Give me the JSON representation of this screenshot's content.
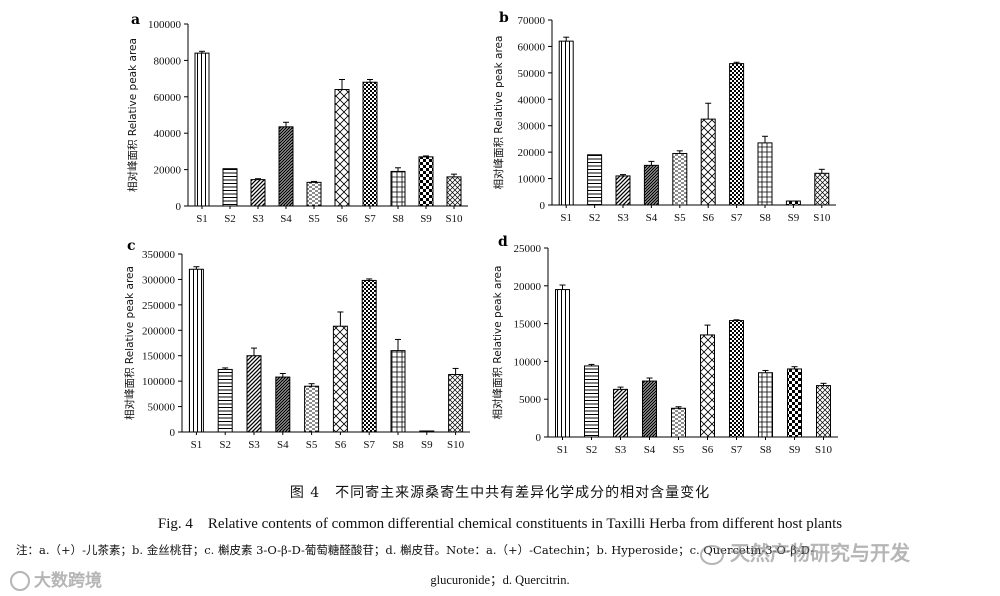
{
  "chart_data": [
    {
      "type": "bar",
      "panel": "a",
      "ylabel": "相对峰面积 Relative peak area",
      "ylim": [
        0,
        100000
      ],
      "yticks": [
        0,
        20000,
        40000,
        60000,
        80000,
        100000
      ],
      "categories": [
        "S1",
        "S2",
        "S3",
        "S4",
        "S5",
        "S6",
        "S7",
        "S8",
        "S9",
        "S10"
      ],
      "values": [
        84000,
        20500,
        14500,
        43500,
        13000,
        64000,
        68000,
        19000,
        27000,
        16000
      ],
      "errors": [
        1000,
        0,
        500,
        2500,
        500,
        5500,
        1500,
        2000,
        500,
        1500
      ]
    },
    {
      "type": "bar",
      "panel": "b",
      "ylabel": "相对峰面积 Relative peak area",
      "ylim": [
        0,
        70000
      ],
      "yticks": [
        0,
        10000,
        20000,
        30000,
        40000,
        50000,
        60000,
        70000
      ],
      "categories": [
        "S1",
        "S2",
        "S3",
        "S4",
        "S5",
        "S6",
        "S7",
        "S8",
        "S9",
        "S10"
      ],
      "values": [
        62000,
        19000,
        11000,
        15000,
        19500,
        32500,
        53500,
        23500,
        1500,
        12000
      ],
      "errors": [
        1500,
        0,
        500,
        1500,
        1000,
        6000,
        500,
        2500,
        0,
        1500
      ]
    },
    {
      "type": "bar",
      "panel": "c",
      "ylabel": "相对峰面积 Relative peak area",
      "ylim": [
        0,
        350000
      ],
      "yticks": [
        0,
        50000,
        100000,
        150000,
        200000,
        250000,
        300000,
        350000
      ],
      "categories": [
        "S1",
        "S2",
        "S3",
        "S4",
        "S5",
        "S6",
        "S7",
        "S8",
        "S9",
        "S10"
      ],
      "values": [
        320000,
        123000,
        150000,
        108000,
        90000,
        208000,
        298000,
        160000,
        2000,
        113000
      ],
      "errors": [
        5000,
        3000,
        15000,
        7000,
        5000,
        28000,
        3000,
        22000,
        0,
        12000
      ]
    },
    {
      "type": "bar",
      "panel": "d",
      "ylabel": "相对峰面积 Relative peak area",
      "ylim": [
        0,
        25000
      ],
      "yticks": [
        0,
        5000,
        10000,
        15000,
        20000,
        25000
      ],
      "categories": [
        "S1",
        "S2",
        "S3",
        "S4",
        "S5",
        "S6",
        "S7",
        "S8",
        "S9",
        "S10"
      ],
      "values": [
        19500,
        9400,
        6300,
        7400,
        3800,
        13500,
        15400,
        8500,
        9000,
        6800
      ],
      "errors": [
        600,
        200,
        300,
        400,
        200,
        1300,
        100,
        300,
        300,
        300
      ]
    }
  ],
  "patterns": [
    "vlines",
    "hlines",
    "diag",
    "diagdense",
    "dashes",
    "xdiamond",
    "checker",
    "grid",
    "checkerbold",
    "xsmall"
  ],
  "caption": {
    "cn": "图 4　不同寄主来源桑寄生中共有差异化学成分的相对含量变化",
    "en": "Fig. 4　Relative contents of common differential chemical constituents in Taxilli Herba from different host plants",
    "note_line1": "注：a.（+）-儿茶素；b. 金丝桃苷；c. 槲皮素 3-O-β-D-葡萄糖醛酸苷；d. 槲皮苷。Note：a.（+）-Catechin；b. Hyperoside；c. Quercetin-3-O-β-D-",
    "note_line2": "glucuronide；d. Quercitrin."
  },
  "watermarks": {
    "left": "大数跨境",
    "right": "天然产物研究与开发"
  }
}
